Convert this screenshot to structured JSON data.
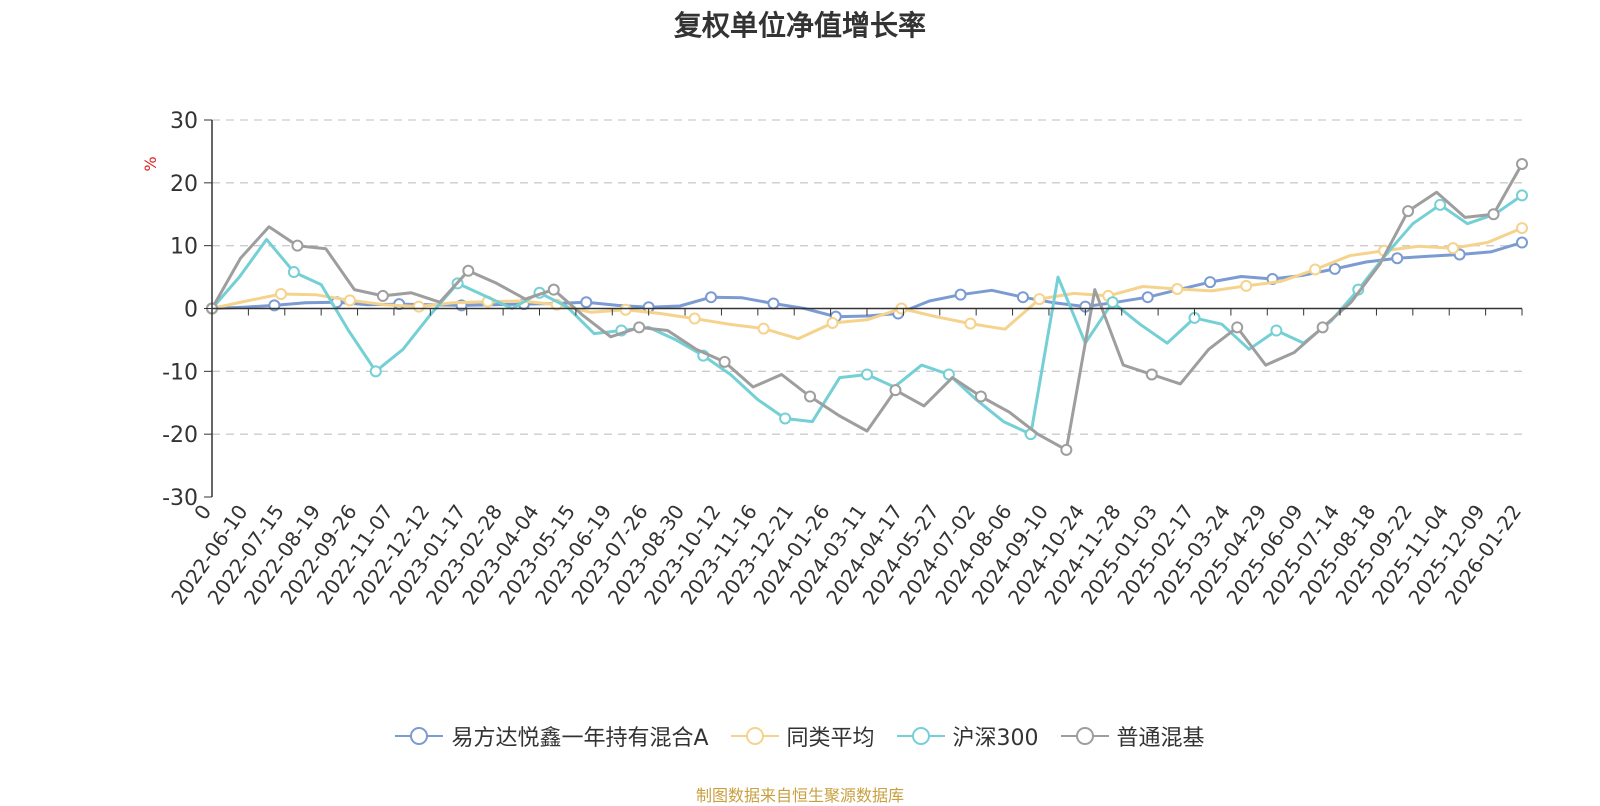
{
  "chart_data": {
    "type": "line",
    "title": "复权单位净值增长率",
    "ylabel": "%",
    "xlabel": "",
    "ylim": [
      -30,
      30
    ],
    "yticks": [
      30,
      20,
      10,
      0,
      -10,
      -20,
      -30
    ],
    "grid": "horizontal-dashed",
    "legend_position": "bottom-center",
    "x_tick_labels": [
      "0",
      "2022-06-10",
      "2022-07-15",
      "2022-08-19",
      "2022-09-26",
      "2022-11-07",
      "2022-12-12",
      "2023-01-17",
      "2023-02-28",
      "2023-04-04",
      "2023-05-15",
      "2023-06-19",
      "2023-07-26",
      "2023-08-30",
      "2023-10-12",
      "2023-11-16",
      "2023-12-21",
      "2024-01-26",
      "2024-03-11",
      "2024-04-17",
      "2024-05-27",
      "2024-07-02",
      "2024-08-06",
      "2024-09-10",
      "2024-10-24",
      "2024-11-28",
      "2025-01-03",
      "2025-02-17",
      "2025-03-24",
      "2025-04-29",
      "2025-06-09",
      "2025-07-14",
      "2025-08-18",
      "2025-09-22",
      "2025-11-04",
      "2025-12-09",
      "2026-01-22"
    ],
    "series": [
      {
        "name": "易方达悦鑫一年持有混合A",
        "color": "#7b9bd2",
        "values": [
          0,
          0.2,
          0.5,
          0.9,
          1.0,
          0.6,
          0.7,
          0.6,
          0.5,
          0.6,
          0.7,
          0.8,
          1.0,
          0.5,
          0.2,
          0.4,
          1.8,
          1.7,
          0.8,
          0.0,
          -1.3,
          -1.2,
          -0.8,
          1.2,
          2.2,
          2.9,
          1.8,
          0.9,
          0.3,
          1.0,
          1.8,
          3.0,
          4.2,
          5.1,
          4.7,
          5.3,
          6.3,
          7.4,
          8.0,
          8.3,
          8.6,
          9.0,
          10.5
        ]
      },
      {
        "name": "同类平均",
        "color": "#f5d38c",
        "values": [
          0,
          1.2,
          2.3,
          2.2,
          1.3,
          0.6,
          0.3,
          0.9,
          1.1,
          1.2,
          0.6,
          -0.6,
          -0.2,
          -0.8,
          -1.6,
          -2.5,
          -3.2,
          -4.8,
          -2.3,
          -1.8,
          0.0,
          -1.3,
          -2.4,
          -3.3,
          1.5,
          2.4,
          2.0,
          3.5,
          3.1,
          2.8,
          3.6,
          4.3,
          6.2,
          8.4,
          9.2,
          9.9,
          9.6,
          10.5,
          12.8
        ]
      },
      {
        "name": "沪深300",
        "color": "#74d0d4",
        "values": [
          0,
          5.0,
          11.0,
          5.8,
          3.8,
          -3.5,
          -10.0,
          -6.5,
          -1.0,
          4.0,
          2.0,
          0.0,
          2.5,
          0.3,
          -4.0,
          -3.5,
          -3.0,
          -5.0,
          -7.5,
          -10.5,
          -14.5,
          -17.5,
          -18.0,
          -11.0,
          -10.5,
          -12.5,
          -9.0,
          -10.5,
          -14.5,
          -18.0,
          -20.0,
          5.0,
          -5.5,
          1.0,
          -2.5,
          -5.5,
          -1.5,
          -2.5,
          -6.5,
          -3.5,
          -5.5,
          -2.0,
          3.0,
          8.5,
          13.5,
          16.5,
          13.5,
          15.0,
          18.0
        ]
      },
      {
        "name": "普通混基",
        "color": "#9e9e9e",
        "values": [
          0,
          8.0,
          13.0,
          10.0,
          9.5,
          3.0,
          2.0,
          2.5,
          1.0,
          6.0,
          4.0,
          1.5,
          3.0,
          -1.0,
          -4.5,
          -3.0,
          -3.5,
          -6.5,
          -8.5,
          -12.5,
          -10.5,
          -14.0,
          -17.0,
          -19.5,
          -13.0,
          -15.5,
          -11.0,
          -14.0,
          -16.5,
          -20.0,
          -22.5,
          3.0,
          -9.0,
          -10.5,
          -12.0,
          -6.5,
          -3.0,
          -9.0,
          -7.0,
          -3.0,
          1.0,
          7.0,
          15.5,
          18.5,
          14.5,
          15.0,
          23.0
        ]
      }
    ]
  },
  "source_note": "制图数据来自恒生聚源数据库"
}
